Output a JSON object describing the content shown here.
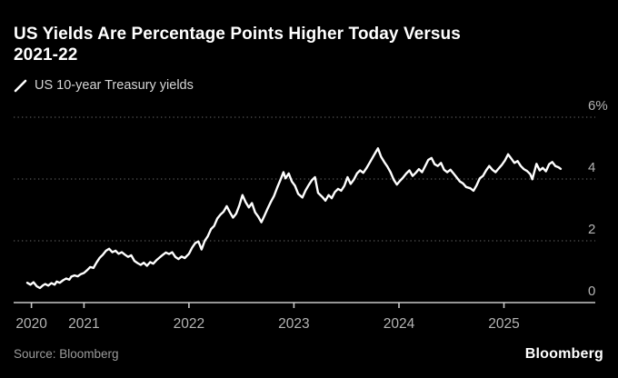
{
  "header": {
    "title": "US Yields Are Percentage Points Higher Today Versus\n2021-22",
    "legend_label": "US 10-year Treasury yields"
  },
  "footer": {
    "source": "Source: Bloomberg",
    "brand": "Bloomberg"
  },
  "colors": {
    "background": "#000000",
    "title_text": "#ffffff",
    "legend_text": "#d6d6d6",
    "line": "#ffffff",
    "grid": "#565656",
    "axis": "#c8c8c8",
    "tick_label": "#b4b4b4",
    "source_text": "#9c9c9c",
    "brand_text": "#ffffff"
  },
  "chart_data": {
    "type": "line",
    "title": "US Yields Are Percentage Points Higher Today Versus 2021-22",
    "xlabel": "",
    "ylabel": "",
    "unit": "%",
    "xlim": [
      2020.33,
      2025.87
    ],
    "ylim": [
      0,
      6
    ],
    "x_ticks": [
      2020.5,
      2021,
      2022,
      2023,
      2024,
      2025
    ],
    "x_tick_labels": [
      "2020",
      "2021",
      "2022",
      "2023",
      "2024",
      "2025"
    ],
    "y_ticks": [
      0,
      2,
      4,
      6
    ],
    "y_tick_labels": [
      "0",
      "2",
      "4",
      "6%"
    ],
    "y_axis_side": "right",
    "grid": "horizontal-dotted",
    "legend_position": "top-left",
    "series": [
      {
        "name": "US 10-year Treasury yields",
        "points": [
          [
            2020.46,
            0.64
          ],
          [
            2020.49,
            0.58
          ],
          [
            2020.52,
            0.66
          ],
          [
            2020.55,
            0.53
          ],
          [
            2020.58,
            0.47
          ],
          [
            2020.61,
            0.56
          ],
          [
            2020.63,
            0.6
          ],
          [
            2020.66,
            0.55
          ],
          [
            2020.69,
            0.63
          ],
          [
            2020.72,
            0.58
          ],
          [
            2020.74,
            0.68
          ],
          [
            2020.77,
            0.64
          ],
          [
            2020.8,
            0.72
          ],
          [
            2020.83,
            0.78
          ],
          [
            2020.86,
            0.74
          ],
          [
            2020.88,
            0.84
          ],
          [
            2020.91,
            0.88
          ],
          [
            2020.94,
            0.85
          ],
          [
            2020.97,
            0.92
          ],
          [
            2021.0,
            0.96
          ],
          [
            2021.03,
            1.05
          ],
          [
            2021.06,
            1.15
          ],
          [
            2021.09,
            1.12
          ],
          [
            2021.12,
            1.3
          ],
          [
            2021.15,
            1.45
          ],
          [
            2021.18,
            1.55
          ],
          [
            2021.21,
            1.68
          ],
          [
            2021.24,
            1.74
          ],
          [
            2021.27,
            1.63
          ],
          [
            2021.3,
            1.68
          ],
          [
            2021.33,
            1.58
          ],
          [
            2021.36,
            1.63
          ],
          [
            2021.39,
            1.55
          ],
          [
            2021.42,
            1.48
          ],
          [
            2021.45,
            1.53
          ],
          [
            2021.48,
            1.35
          ],
          [
            2021.51,
            1.28
          ],
          [
            2021.54,
            1.22
          ],
          [
            2021.57,
            1.29
          ],
          [
            2021.6,
            1.19
          ],
          [
            2021.63,
            1.31
          ],
          [
            2021.66,
            1.26
          ],
          [
            2021.69,
            1.37
          ],
          [
            2021.72,
            1.46
          ],
          [
            2021.75,
            1.54
          ],
          [
            2021.78,
            1.62
          ],
          [
            2021.81,
            1.57
          ],
          [
            2021.84,
            1.63
          ],
          [
            2021.87,
            1.48
          ],
          [
            2021.9,
            1.41
          ],
          [
            2021.93,
            1.49
          ],
          [
            2021.96,
            1.44
          ],
          [
            2022.0,
            1.58
          ],
          [
            2022.03,
            1.78
          ],
          [
            2022.06,
            1.93
          ],
          [
            2022.09,
            1.98
          ],
          [
            2022.12,
            1.72
          ],
          [
            2022.15,
            2.0
          ],
          [
            2022.18,
            2.15
          ],
          [
            2022.21,
            2.38
          ],
          [
            2022.24,
            2.48
          ],
          [
            2022.27,
            2.72
          ],
          [
            2022.3,
            2.85
          ],
          [
            2022.33,
            2.94
          ],
          [
            2022.36,
            3.12
          ],
          [
            2022.39,
            2.92
          ],
          [
            2022.42,
            2.75
          ],
          [
            2022.45,
            2.88
          ],
          [
            2022.48,
            3.15
          ],
          [
            2022.51,
            3.48
          ],
          [
            2022.54,
            3.25
          ],
          [
            2022.57,
            3.08
          ],
          [
            2022.6,
            3.22
          ],
          [
            2022.63,
            2.92
          ],
          [
            2022.66,
            2.78
          ],
          [
            2022.69,
            2.6
          ],
          [
            2022.72,
            2.82
          ],
          [
            2022.75,
            3.05
          ],
          [
            2022.78,
            3.26
          ],
          [
            2022.81,
            3.45
          ],
          [
            2022.84,
            3.72
          ],
          [
            2022.87,
            3.96
          ],
          [
            2022.9,
            4.22
          ],
          [
            2022.92,
            4.02
          ],
          [
            2022.95,
            4.18
          ],
          [
            2022.98,
            3.92
          ],
          [
            2023.01,
            3.78
          ],
          [
            2023.04,
            3.52
          ],
          [
            2023.08,
            3.4
          ],
          [
            2023.11,
            3.63
          ],
          [
            2023.14,
            3.8
          ],
          [
            2023.17,
            3.96
          ],
          [
            2023.2,
            4.06
          ],
          [
            2023.23,
            3.55
          ],
          [
            2023.27,
            3.42
          ],
          [
            2023.3,
            3.3
          ],
          [
            2023.33,
            3.48
          ],
          [
            2023.36,
            3.38
          ],
          [
            2023.39,
            3.58
          ],
          [
            2023.42,
            3.68
          ],
          [
            2023.45,
            3.62
          ],
          [
            2023.48,
            3.78
          ],
          [
            2023.51,
            4.06
          ],
          [
            2023.54,
            3.84
          ],
          [
            2023.57,
            3.98
          ],
          [
            2023.6,
            4.18
          ],
          [
            2023.63,
            4.28
          ],
          [
            2023.66,
            4.2
          ],
          [
            2023.69,
            4.35
          ],
          [
            2023.72,
            4.52
          ],
          [
            2023.75,
            4.7
          ],
          [
            2023.78,
            4.88
          ],
          [
            2023.8,
            4.99
          ],
          [
            2023.83,
            4.72
          ],
          [
            2023.86,
            4.55
          ],
          [
            2023.89,
            4.4
          ],
          [
            2023.92,
            4.22
          ],
          [
            2023.95,
            3.98
          ],
          [
            2023.98,
            3.82
          ],
          [
            2024.01,
            3.94
          ],
          [
            2024.04,
            4.05
          ],
          [
            2024.07,
            4.18
          ],
          [
            2024.1,
            4.28
          ],
          [
            2024.13,
            4.1
          ],
          [
            2024.16,
            4.2
          ],
          [
            2024.19,
            4.32
          ],
          [
            2024.22,
            4.22
          ],
          [
            2024.25,
            4.42
          ],
          [
            2024.28,
            4.62
          ],
          [
            2024.31,
            4.68
          ],
          [
            2024.34,
            4.48
          ],
          [
            2024.37,
            4.42
          ],
          [
            2024.4,
            4.52
          ],
          [
            2024.43,
            4.3
          ],
          [
            2024.46,
            4.22
          ],
          [
            2024.49,
            4.3
          ],
          [
            2024.52,
            4.18
          ],
          [
            2024.55,
            4.05
          ],
          [
            2024.58,
            3.92
          ],
          [
            2024.61,
            3.86
          ],
          [
            2024.64,
            3.74
          ],
          [
            2024.68,
            3.7
          ],
          [
            2024.71,
            3.62
          ],
          [
            2024.74,
            3.8
          ],
          [
            2024.77,
            4.02
          ],
          [
            2024.8,
            4.1
          ],
          [
            2024.83,
            4.28
          ],
          [
            2024.86,
            4.42
          ],
          [
            2024.89,
            4.3
          ],
          [
            2024.92,
            4.22
          ],
          [
            2024.95,
            4.34
          ],
          [
            2024.98,
            4.46
          ],
          [
            2025.01,
            4.6
          ],
          [
            2025.04,
            4.8
          ],
          [
            2025.07,
            4.66
          ],
          [
            2025.1,
            4.52
          ],
          [
            2025.13,
            4.58
          ],
          [
            2025.16,
            4.42
          ],
          [
            2025.19,
            4.32
          ],
          [
            2025.22,
            4.26
          ],
          [
            2025.25,
            4.16
          ],
          [
            2025.27,
            3.99
          ],
          [
            2025.31,
            4.49
          ],
          [
            2025.34,
            4.28
          ],
          [
            2025.37,
            4.36
          ],
          [
            2025.4,
            4.25
          ],
          [
            2025.43,
            4.48
          ],
          [
            2025.46,
            4.55
          ],
          [
            2025.49,
            4.42
          ],
          [
            2025.52,
            4.38
          ],
          [
            2025.54,
            4.33
          ]
        ]
      }
    ]
  }
}
